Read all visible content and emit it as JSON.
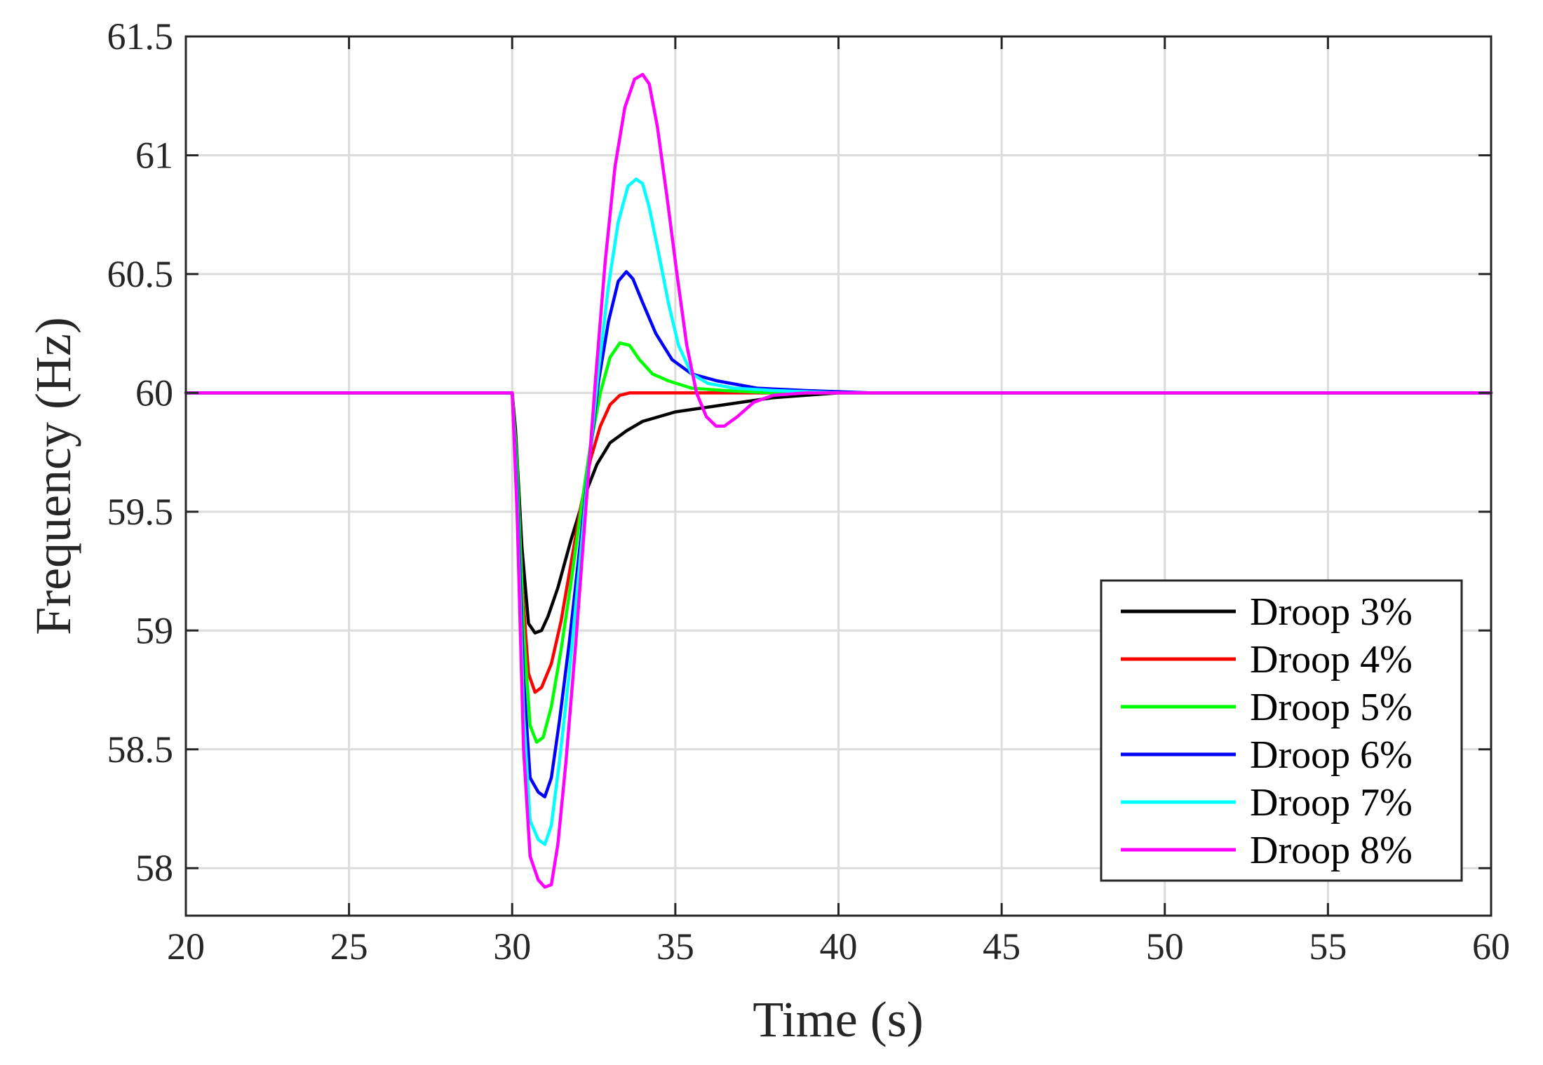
{
  "chart_data": {
    "type": "line",
    "title": "",
    "xlabel": "Time (s)",
    "ylabel": "Frequency (Hz)",
    "xlim": [
      20,
      60
    ],
    "ylim": [
      57.8,
      61.5
    ],
    "xticks": [
      20,
      25,
      30,
      35,
      40,
      45,
      50,
      55,
      60
    ],
    "yticks": [
      58,
      58.5,
      59,
      59.5,
      60,
      60.5,
      61,
      61.5
    ],
    "ytick_labels": [
      "58",
      "58.5",
      "59",
      "59.5",
      "60",
      "60.5",
      "61",
      "61.5"
    ],
    "grid": true,
    "legend_position": "bottom-right",
    "series": [
      {
        "name": "Droop 3%",
        "color": "#000000",
        "x": [
          20,
          30.0,
          30.1,
          30.3,
          30.5,
          30.7,
          30.9,
          31.1,
          31.4,
          31.8,
          32.2,
          32.6,
          33.0,
          33.5,
          34.0,
          35.0,
          36.0,
          37.0,
          38.0,
          39.0,
          40.0,
          41.0,
          60
        ],
        "y": [
          60.0,
          60.0,
          59.85,
          59.35,
          59.03,
          58.99,
          59.0,
          59.06,
          59.18,
          59.38,
          59.56,
          59.7,
          59.79,
          59.84,
          59.88,
          59.92,
          59.94,
          59.96,
          59.98,
          59.99,
          60.0,
          60.0,
          60.0
        ]
      },
      {
        "name": "Droop 4%",
        "color": "#ff0000",
        "x": [
          20,
          30.0,
          30.1,
          30.3,
          30.5,
          30.7,
          30.9,
          31.2,
          31.5,
          31.8,
          32.1,
          32.4,
          32.7,
          33.0,
          33.3,
          33.6,
          33.9,
          34.3,
          34.8,
          35.5,
          36.5,
          38.0,
          40.0,
          60
        ],
        "y": [
          60.0,
          60.0,
          59.8,
          59.2,
          58.82,
          58.74,
          58.76,
          58.86,
          59.04,
          59.28,
          59.52,
          59.72,
          59.86,
          59.95,
          59.99,
          60.0,
          60.0,
          60.0,
          60.0,
          60.0,
          60.0,
          60.0,
          60.0,
          60.0
        ]
      },
      {
        "name": "Droop 5%",
        "color": "#00ff00",
        "x": [
          20,
          30.0,
          30.15,
          30.35,
          30.55,
          30.75,
          30.95,
          31.2,
          31.5,
          31.8,
          32.1,
          32.4,
          32.7,
          33.0,
          33.3,
          33.6,
          33.9,
          34.3,
          34.8,
          35.5,
          36.5,
          38.0,
          40.0,
          60
        ],
        "y": [
          60.0,
          60.0,
          59.7,
          59.0,
          58.6,
          58.53,
          58.55,
          58.68,
          58.92,
          59.2,
          59.5,
          59.78,
          60.0,
          60.15,
          60.21,
          60.2,
          60.14,
          60.08,
          60.05,
          60.02,
          60.01,
          60.0,
          60.0,
          60.0
        ]
      },
      {
        "name": "Droop 6%",
        "color": "#0000ff",
        "x": [
          20,
          30.0,
          30.15,
          30.35,
          30.55,
          30.8,
          31.0,
          31.2,
          31.45,
          31.75,
          32.05,
          32.35,
          32.65,
          32.95,
          33.25,
          33.5,
          33.7,
          34.0,
          34.4,
          34.9,
          35.5,
          36.3,
          37.5,
          39.0,
          41.0,
          60
        ],
        "y": [
          60.0,
          60.0,
          59.6,
          58.8,
          58.38,
          58.32,
          58.3,
          58.38,
          58.62,
          58.95,
          59.32,
          59.7,
          60.05,
          60.3,
          60.47,
          60.51,
          60.48,
          60.38,
          60.25,
          60.14,
          60.08,
          60.05,
          60.02,
          60.01,
          60.0,
          60.0
        ]
      },
      {
        "name": "Droop 7%",
        "color": "#00ffff",
        "x": [
          20,
          30.0,
          30.15,
          30.35,
          30.55,
          30.8,
          31.0,
          31.2,
          31.45,
          31.75,
          32.05,
          32.35,
          32.65,
          32.95,
          33.25,
          33.55,
          33.8,
          34.0,
          34.2,
          34.5,
          34.8,
          35.1,
          35.5,
          36.0,
          36.8,
          38.0,
          40.0,
          60
        ],
        "y": [
          60.0,
          60.0,
          59.55,
          58.65,
          58.2,
          58.12,
          58.1,
          58.18,
          58.45,
          58.82,
          59.25,
          59.7,
          60.1,
          60.45,
          60.72,
          60.87,
          60.9,
          60.88,
          60.78,
          60.58,
          60.37,
          60.2,
          60.08,
          60.04,
          60.02,
          60.01,
          60.0,
          60.0
        ]
      },
      {
        "name": "Droop 8%",
        "color": "#ff00ff",
        "x": [
          20,
          30.0,
          30.15,
          30.35,
          30.55,
          30.8,
          31.0,
          31.2,
          31.4,
          31.65,
          31.95,
          32.25,
          32.55,
          32.85,
          33.15,
          33.45,
          33.75,
          34.0,
          34.2,
          34.45,
          34.75,
          35.05,
          35.35,
          35.65,
          35.95,
          36.25,
          36.5,
          36.9,
          37.4,
          38.0,
          39.0,
          40.0,
          60
        ],
        "y": [
          60.0,
          60.0,
          59.5,
          58.5,
          58.05,
          57.95,
          57.92,
          57.93,
          58.1,
          58.45,
          58.95,
          59.5,
          60.05,
          60.55,
          60.95,
          61.2,
          61.32,
          61.34,
          61.3,
          61.12,
          60.82,
          60.5,
          60.2,
          60.0,
          59.9,
          59.86,
          59.86,
          59.9,
          59.96,
          59.99,
          60.0,
          60.0,
          60.0
        ]
      }
    ]
  }
}
